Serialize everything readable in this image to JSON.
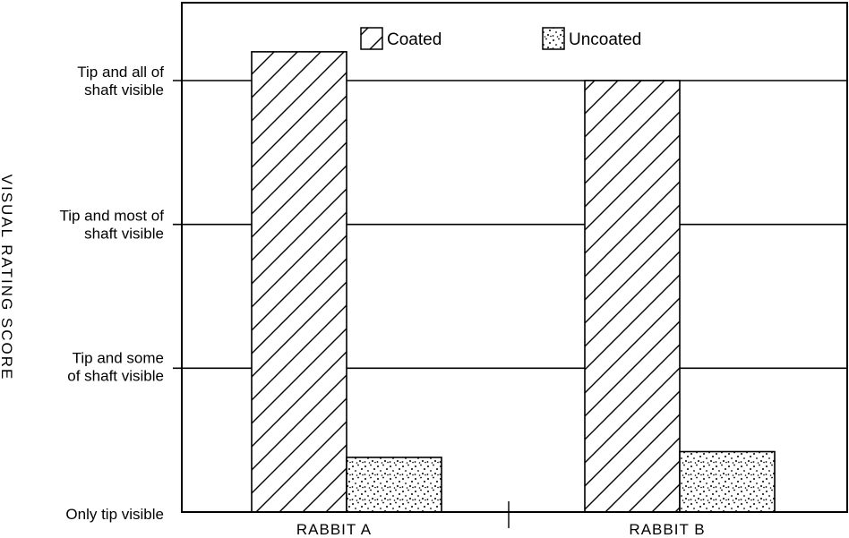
{
  "chart_data": {
    "type": "bar",
    "title": "",
    "xlabel": "",
    "ylabel": "VISUAL RATING SCORE",
    "categories": [
      "RABBIT A",
      "RABBIT B"
    ],
    "series": [
      {
        "name": "Coated",
        "pattern": "diagonal-hatch",
        "values": [
          3.2,
          3.0
        ]
      },
      {
        "name": "Uncoated",
        "pattern": "stipple",
        "values": [
          0.38,
          0.42
        ]
      }
    ],
    "y_ticks": [
      {
        "value": 0,
        "label_lines": [
          "Only tip visible"
        ]
      },
      {
        "value": 1,
        "label_lines": [
          "Tip and some",
          "of shaft visible"
        ]
      },
      {
        "value": 2,
        "label_lines": [
          "Tip and most of",
          "shaft visible"
        ]
      },
      {
        "value": 3,
        "label_lines": [
          "Tip and all of",
          "shaft visible"
        ]
      }
    ],
    "ylim": [
      0,
      3.55
    ],
    "grid": true,
    "legend_position": "top-center",
    "colors": {
      "ink": "#000000",
      "background": "#ffffff"
    }
  }
}
